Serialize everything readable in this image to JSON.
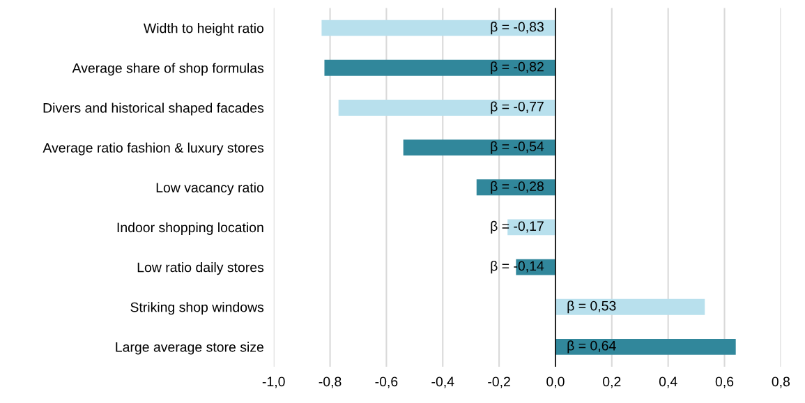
{
  "chart_data": {
    "type": "bar",
    "orientation": "horizontal",
    "categories": [
      "Width to height ratio",
      "Average share of shop formulas",
      "Divers and historical shaped facades",
      "Average ratio fashion & luxury stores",
      "Low vacancy ratio",
      "Indoor shopping location",
      "Low ratio daily stores",
      "Striking shop windows",
      "Large average store size"
    ],
    "values": [
      -0.83,
      -0.82,
      -0.77,
      -0.54,
      -0.28,
      -0.17,
      -0.14,
      0.53,
      0.64
    ],
    "colors": [
      "#b8e0ed",
      "#31879b",
      "#b8e0ed",
      "#31879b",
      "#31879b",
      "#b8e0ed",
      "#31879b",
      "#b8e0ed",
      "#31879b"
    ],
    "value_labels": [
      "β = -0,83",
      "β = -0,82",
      "β = -0,77",
      "β = -0,54",
      "β = -0,28",
      "β = -0,17",
      "β = -0,14",
      "β = 0,53",
      "β = 0,64"
    ],
    "xlim": [
      -1.0,
      0.8
    ],
    "xticks": [
      {
        "value": -1.0,
        "label": "-1,0"
      },
      {
        "value": -0.8,
        "label": "-0,8"
      },
      {
        "value": -0.6,
        "label": "-0,6"
      },
      {
        "value": -0.4,
        "label": "-0,4"
      },
      {
        "value": -0.2,
        "label": "-0,2"
      },
      {
        "value": 0.0,
        "label": "0,0"
      },
      {
        "value": 0.2,
        "label": "0,2"
      },
      {
        "value": 0.4,
        "label": "0,4"
      },
      {
        "value": 0.6,
        "label": "0,6"
      },
      {
        "value": 0.8,
        "label": "0,8"
      }
    ],
    "grid": "x",
    "legend": false
  }
}
